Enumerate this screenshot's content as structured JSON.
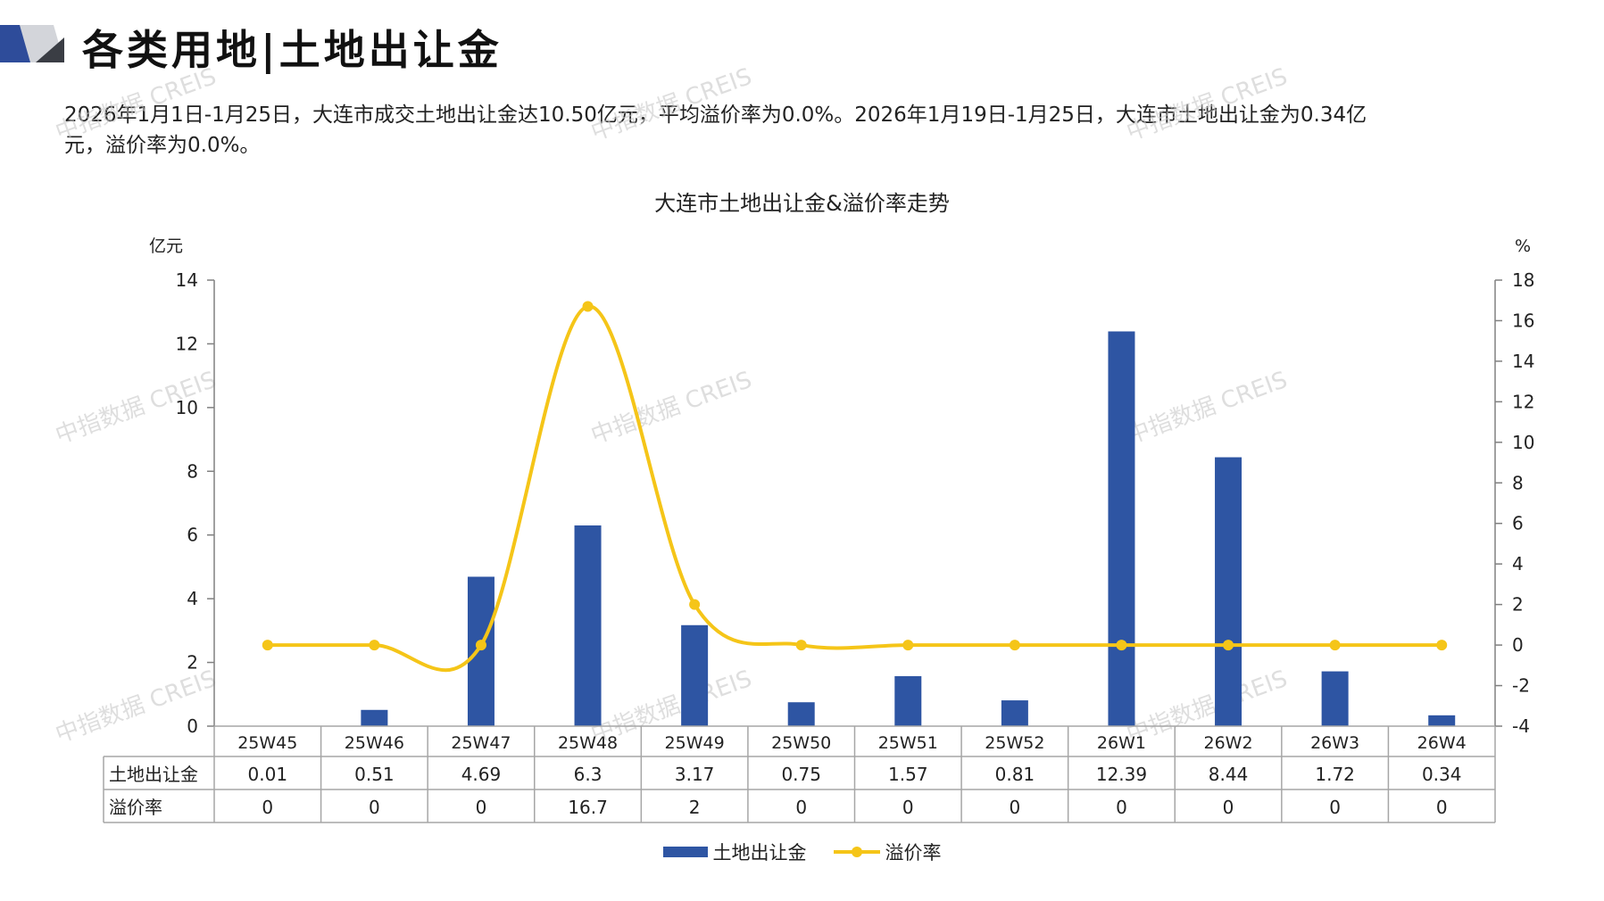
{
  "header": {
    "title": "各类用地|土地出让金",
    "summary_line1": "2026年1月1日-1月25日，大连市成交土地出让金达10.50亿元，平均溢价率为0.0%。2026年1月19日-1月25日，大连市土地出让金为0.34亿",
    "summary_line2": "元，溢价率为0.0%。"
  },
  "watermark": "中指数据 CREIS",
  "colors": {
    "bar": "#2e55a3",
    "line": "#f5c518",
    "axis": "#808080",
    "grid": "#a6a6a6",
    "corner_dark": "#2e4c9a",
    "corner_light": "#d3d5da"
  },
  "chart_data": {
    "type": "bar",
    "title": "大连市土地出让金&溢价率走势",
    "categories": [
      "25W45",
      "25W46",
      "25W47",
      "25W48",
      "25W49",
      "25W50",
      "25W51",
      "25W52",
      "26W1",
      "26W2",
      "26W3",
      "26W4"
    ],
    "series": [
      {
        "name": "土地出让金",
        "type": "bar",
        "axis": "left",
        "values": [
          0.01,
          0.51,
          4.69,
          6.3,
          3.17,
          0.75,
          1.57,
          0.81,
          12.39,
          8.44,
          1.72,
          0.34
        ]
      },
      {
        "name": "溢价率",
        "type": "line",
        "smooth": true,
        "axis": "right",
        "values": [
          0,
          0,
          0,
          16.7,
          2,
          0,
          0,
          0,
          0,
          0,
          0,
          0
        ]
      }
    ],
    "left_axis": {
      "unit": "亿元",
      "ylim": [
        0,
        14
      ],
      "ticks": [
        0,
        2,
        4,
        6,
        8,
        10,
        12,
        14
      ]
    },
    "right_axis": {
      "unit": "%",
      "ylim": [
        -4,
        18
      ],
      "ticks": [
        -4,
        -2,
        0,
        2,
        4,
        6,
        8,
        10,
        12,
        14,
        16,
        18
      ]
    },
    "table": {
      "rows": [
        {
          "label": "土地出让金",
          "values": [
            "0.01",
            "0.51",
            "4.69",
            "6.3",
            "3.17",
            "0.75",
            "1.57",
            "0.81",
            "12.39",
            "8.44",
            "1.72",
            "0.34"
          ]
        },
        {
          "label": "溢价率",
          "values": [
            "0",
            "0",
            "0",
            "16.7",
            "2",
            "0",
            "0",
            "0",
            "0",
            "0",
            "0",
            "0"
          ]
        }
      ]
    },
    "legend": {
      "position": "bottom",
      "entries": [
        "土地出让金",
        "溢价率"
      ]
    },
    "grid": false
  }
}
